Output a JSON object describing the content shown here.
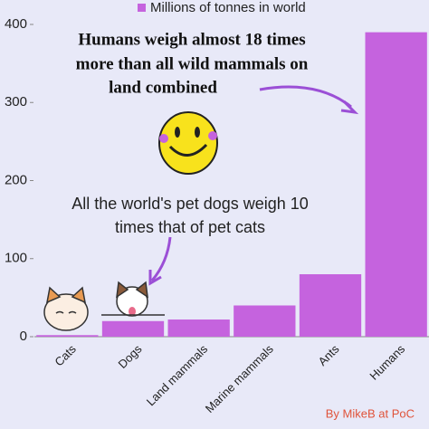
{
  "chart_data": {
    "type": "bar",
    "categories": [
      "Cats",
      "Dogs",
      "Land mammals",
      "Marine mammals",
      "Ants",
      "Humans"
    ],
    "series": [
      {
        "name": "Millions of tonnes in world",
        "color": "#c563de",
        "values": [
          2,
          20,
          22,
          40,
          80,
          390
        ]
      }
    ],
    "ylim": [
      0,
      400
    ],
    "yticks": [
      0,
      100,
      200,
      300,
      400
    ],
    "grid": false,
    "legend": "top",
    "annotations": [
      [
        "Humans weigh almost 18 times",
        "more than all wild mammals on",
        "land combined"
      ],
      [
        "All the world's pet dogs weigh 10",
        "times that of pet cats"
      ]
    ],
    "credit": "By MikeB at PoC"
  }
}
